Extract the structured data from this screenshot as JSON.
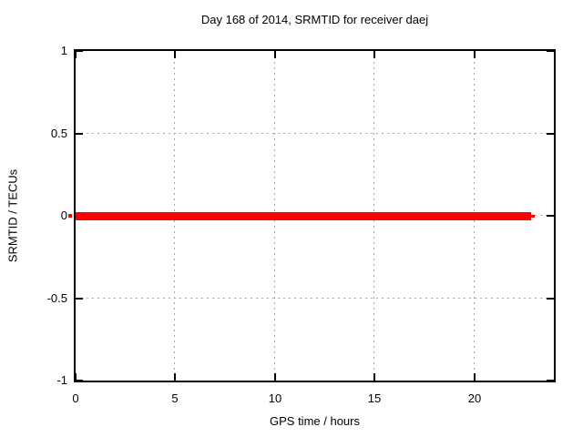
{
  "chart_data": {
    "type": "line",
    "title": "Day 168 of 2014, SRMTID for receiver daej",
    "xlabel": "GPS time / hours",
    "ylabel": "SRMTID / TECUs",
    "xlim": [
      0,
      24
    ],
    "ylim": [
      -1,
      1
    ],
    "x_ticks": [
      0,
      5,
      10,
      15,
      20
    ],
    "x_tick_labels": [
      "0",
      "5",
      "10",
      "15",
      "20"
    ],
    "y_ticks": [
      1,
      0.5,
      0,
      -0.5,
      -1
    ],
    "y_tick_labels": [
      "1",
      "0.5",
      "0",
      "-0.5",
      "-1"
    ],
    "grid": true,
    "legend": "none",
    "colors": {
      "series": "#ff0000",
      "grid": "#a8a8a8",
      "border": "#000000",
      "text": "#000000",
      "background": "#ffffff"
    },
    "series": [
      {
        "name": "SRMTID",
        "color": "#ff0000",
        "y_value": 0,
        "x_start": 0,
        "x_end": 22.86,
        "tail_x_end": 23.04
      }
    ]
  }
}
